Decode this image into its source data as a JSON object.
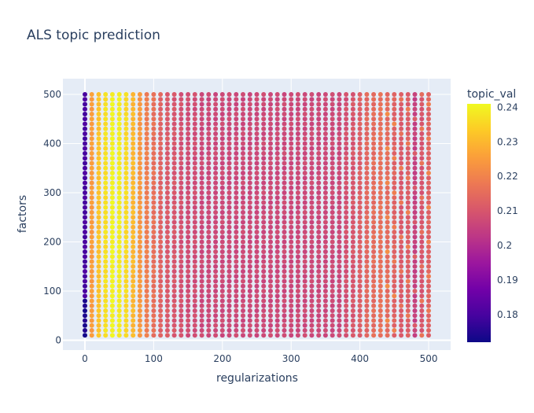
{
  "chart_data": {
    "type": "scatter",
    "title": "ALS topic prediction",
    "xlabel": "regularizations",
    "ylabel": "factors",
    "xlim": [
      -32,
      532
    ],
    "ylim": [
      -20,
      532
    ],
    "x_ticks": [
      0,
      100,
      200,
      300,
      400,
      500
    ],
    "y_ticks": [
      0,
      100,
      200,
      300,
      400,
      500
    ],
    "x_tick_labels": [
      "0",
      "100",
      "200",
      "300",
      "400",
      "500"
    ],
    "y_tick_labels": [
      "0",
      "100",
      "200",
      "300",
      "400",
      "500"
    ],
    "grid": true,
    "colorbar": {
      "title": "topic_val",
      "min": 0.172,
      "max": 0.241,
      "ticks": [
        0.18,
        0.19,
        0.2,
        0.21,
        0.22,
        0.23,
        0.24
      ],
      "tick_labels": [
        "0.18",
        "0.19",
        "0.2",
        "0.21",
        "0.22",
        "0.23",
        "0.24"
      ],
      "colorscale": [
        "#0d0887",
        "#46039f",
        "#7201a8",
        "#9c179e",
        "#bd3786",
        "#d8576b",
        "#ed7953",
        "#fb9f3a",
        "#fdca26",
        "#f0f921"
      ]
    },
    "grid_description": {
      "x_values": "0 to 500 step 10",
      "y_values": "10 to 500 step 10"
    },
    "column_values": {
      "x": [
        0,
        10,
        20,
        30,
        40,
        50,
        60,
        70,
        80,
        90,
        100,
        110,
        120,
        130,
        140,
        150,
        160,
        170,
        180,
        190,
        200,
        210,
        220,
        230,
        240,
        250,
        260,
        270,
        280,
        290,
        300,
        310,
        320,
        330,
        340,
        350,
        360,
        370,
        380,
        390,
        400,
        410,
        420,
        430,
        440,
        450,
        460,
        470,
        480,
        490,
        500
      ],
      "topic_val": [
        0.18,
        0.225,
        0.232,
        0.237,
        0.24,
        0.239,
        0.236,
        0.23,
        0.224,
        0.219,
        0.216,
        0.213,
        0.211,
        0.21,
        0.209,
        0.208,
        0.208,
        0.207,
        0.207,
        0.207,
        0.207,
        0.207,
        0.207,
        0.207,
        0.207,
        0.207,
        0.207,
        0.207,
        0.207,
        0.207,
        0.207,
        0.207,
        0.207,
        0.207,
        0.207,
        0.207,
        0.207,
        0.207,
        0.209,
        0.21,
        0.212,
        0.214,
        0.215,
        0.216,
        0.215,
        0.213,
        0.211,
        0.212,
        0.205,
        0.21,
        0.213
      ]
    }
  }
}
